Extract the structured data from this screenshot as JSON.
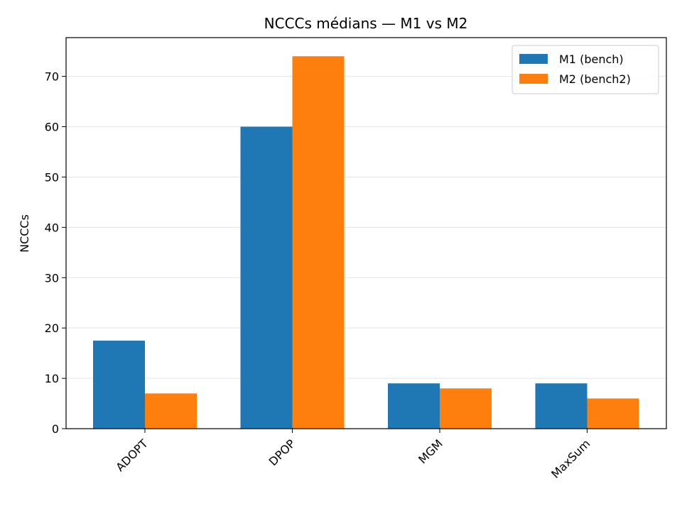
{
  "chart_data": {
    "type": "bar",
    "title": "NCCCs médians — M1 vs M2",
    "xlabel": "",
    "ylabel": "NCCCs",
    "categories": [
      "ADOPT",
      "DPOP",
      "MGM",
      "MaxSum"
    ],
    "series": [
      {
        "name": "M1 (bench)",
        "color": "#1f77b4",
        "values": [
          17.5,
          60,
          9,
          9
        ]
      },
      {
        "name": "M2 (bench2)",
        "color": "#ff7f0e",
        "values": [
          7,
          74,
          8,
          6
        ]
      }
    ],
    "ylim": [
      0,
      77.7
    ],
    "yticks": [
      0,
      10,
      20,
      30,
      40,
      50,
      60,
      70
    ],
    "grid": "horizontal",
    "legend": "top-right"
  }
}
